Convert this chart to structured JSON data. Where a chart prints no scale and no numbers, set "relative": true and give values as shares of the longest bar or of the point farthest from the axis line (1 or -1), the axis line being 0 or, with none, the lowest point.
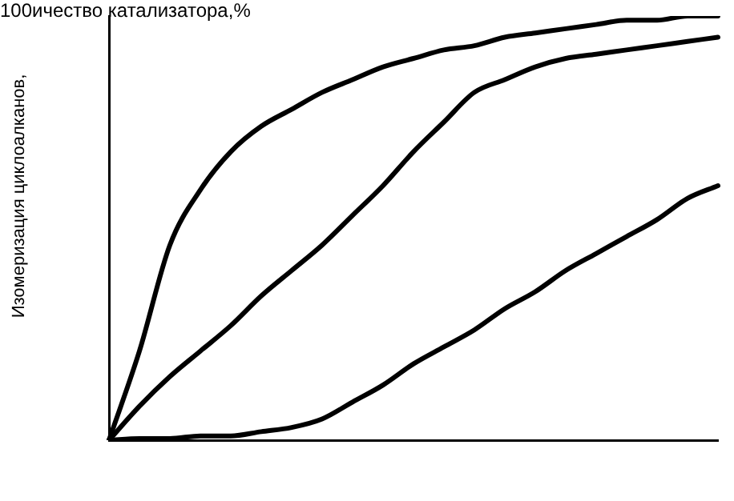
{
  "chart_data": {
    "type": "line",
    "relative": true,
    "xlabel": "ичество катализатора,%",
    "ylabel": "Изомеризация циклоалканов,",
    "annotations": [
      "100"
    ],
    "categories": [
      null,
      null,
      null,
      null,
      null,
      null,
      null,
      null,
      null,
      null,
      null,
      null,
      null,
      null,
      null,
      null,
      null,
      null,
      null,
      null,
      null
    ],
    "series": [
      {
        "color": "#000000",
        "values": [
          0,
          0.21,
          0.46,
          0.59,
          0.68,
          0.74,
          0.78,
          0.82,
          0.85,
          0.88,
          0.9,
          0.92,
          0.93,
          0.95,
          0.96,
          0.97,
          0.98,
          0.99,
          0.99,
          1,
          1
        ]
      },
      {
        "color": "#000000",
        "values": [
          0,
          0.08,
          0.15,
          0.21,
          0.27,
          0.34,
          0.4,
          0.46,
          0.53,
          0.6,
          0.68,
          0.75,
          0.82,
          0.85,
          0.88,
          0.9,
          0.91,
          0.92,
          0.93,
          0.94,
          0.95
        ]
      },
      {
        "color": "#000000",
        "values": [
          0,
          0.004,
          0.004,
          0.01,
          0.01,
          0.02,
          0.03,
          0.05,
          0.09,
          0.13,
          0.18,
          0.22,
          0.26,
          0.31,
          0.35,
          0.4,
          0.44,
          0.48,
          0.52,
          0.57,
          0.6
        ]
      }
    ],
    "grid": false,
    "legend": false,
    "marker": "none",
    "line_style": "solid"
  }
}
